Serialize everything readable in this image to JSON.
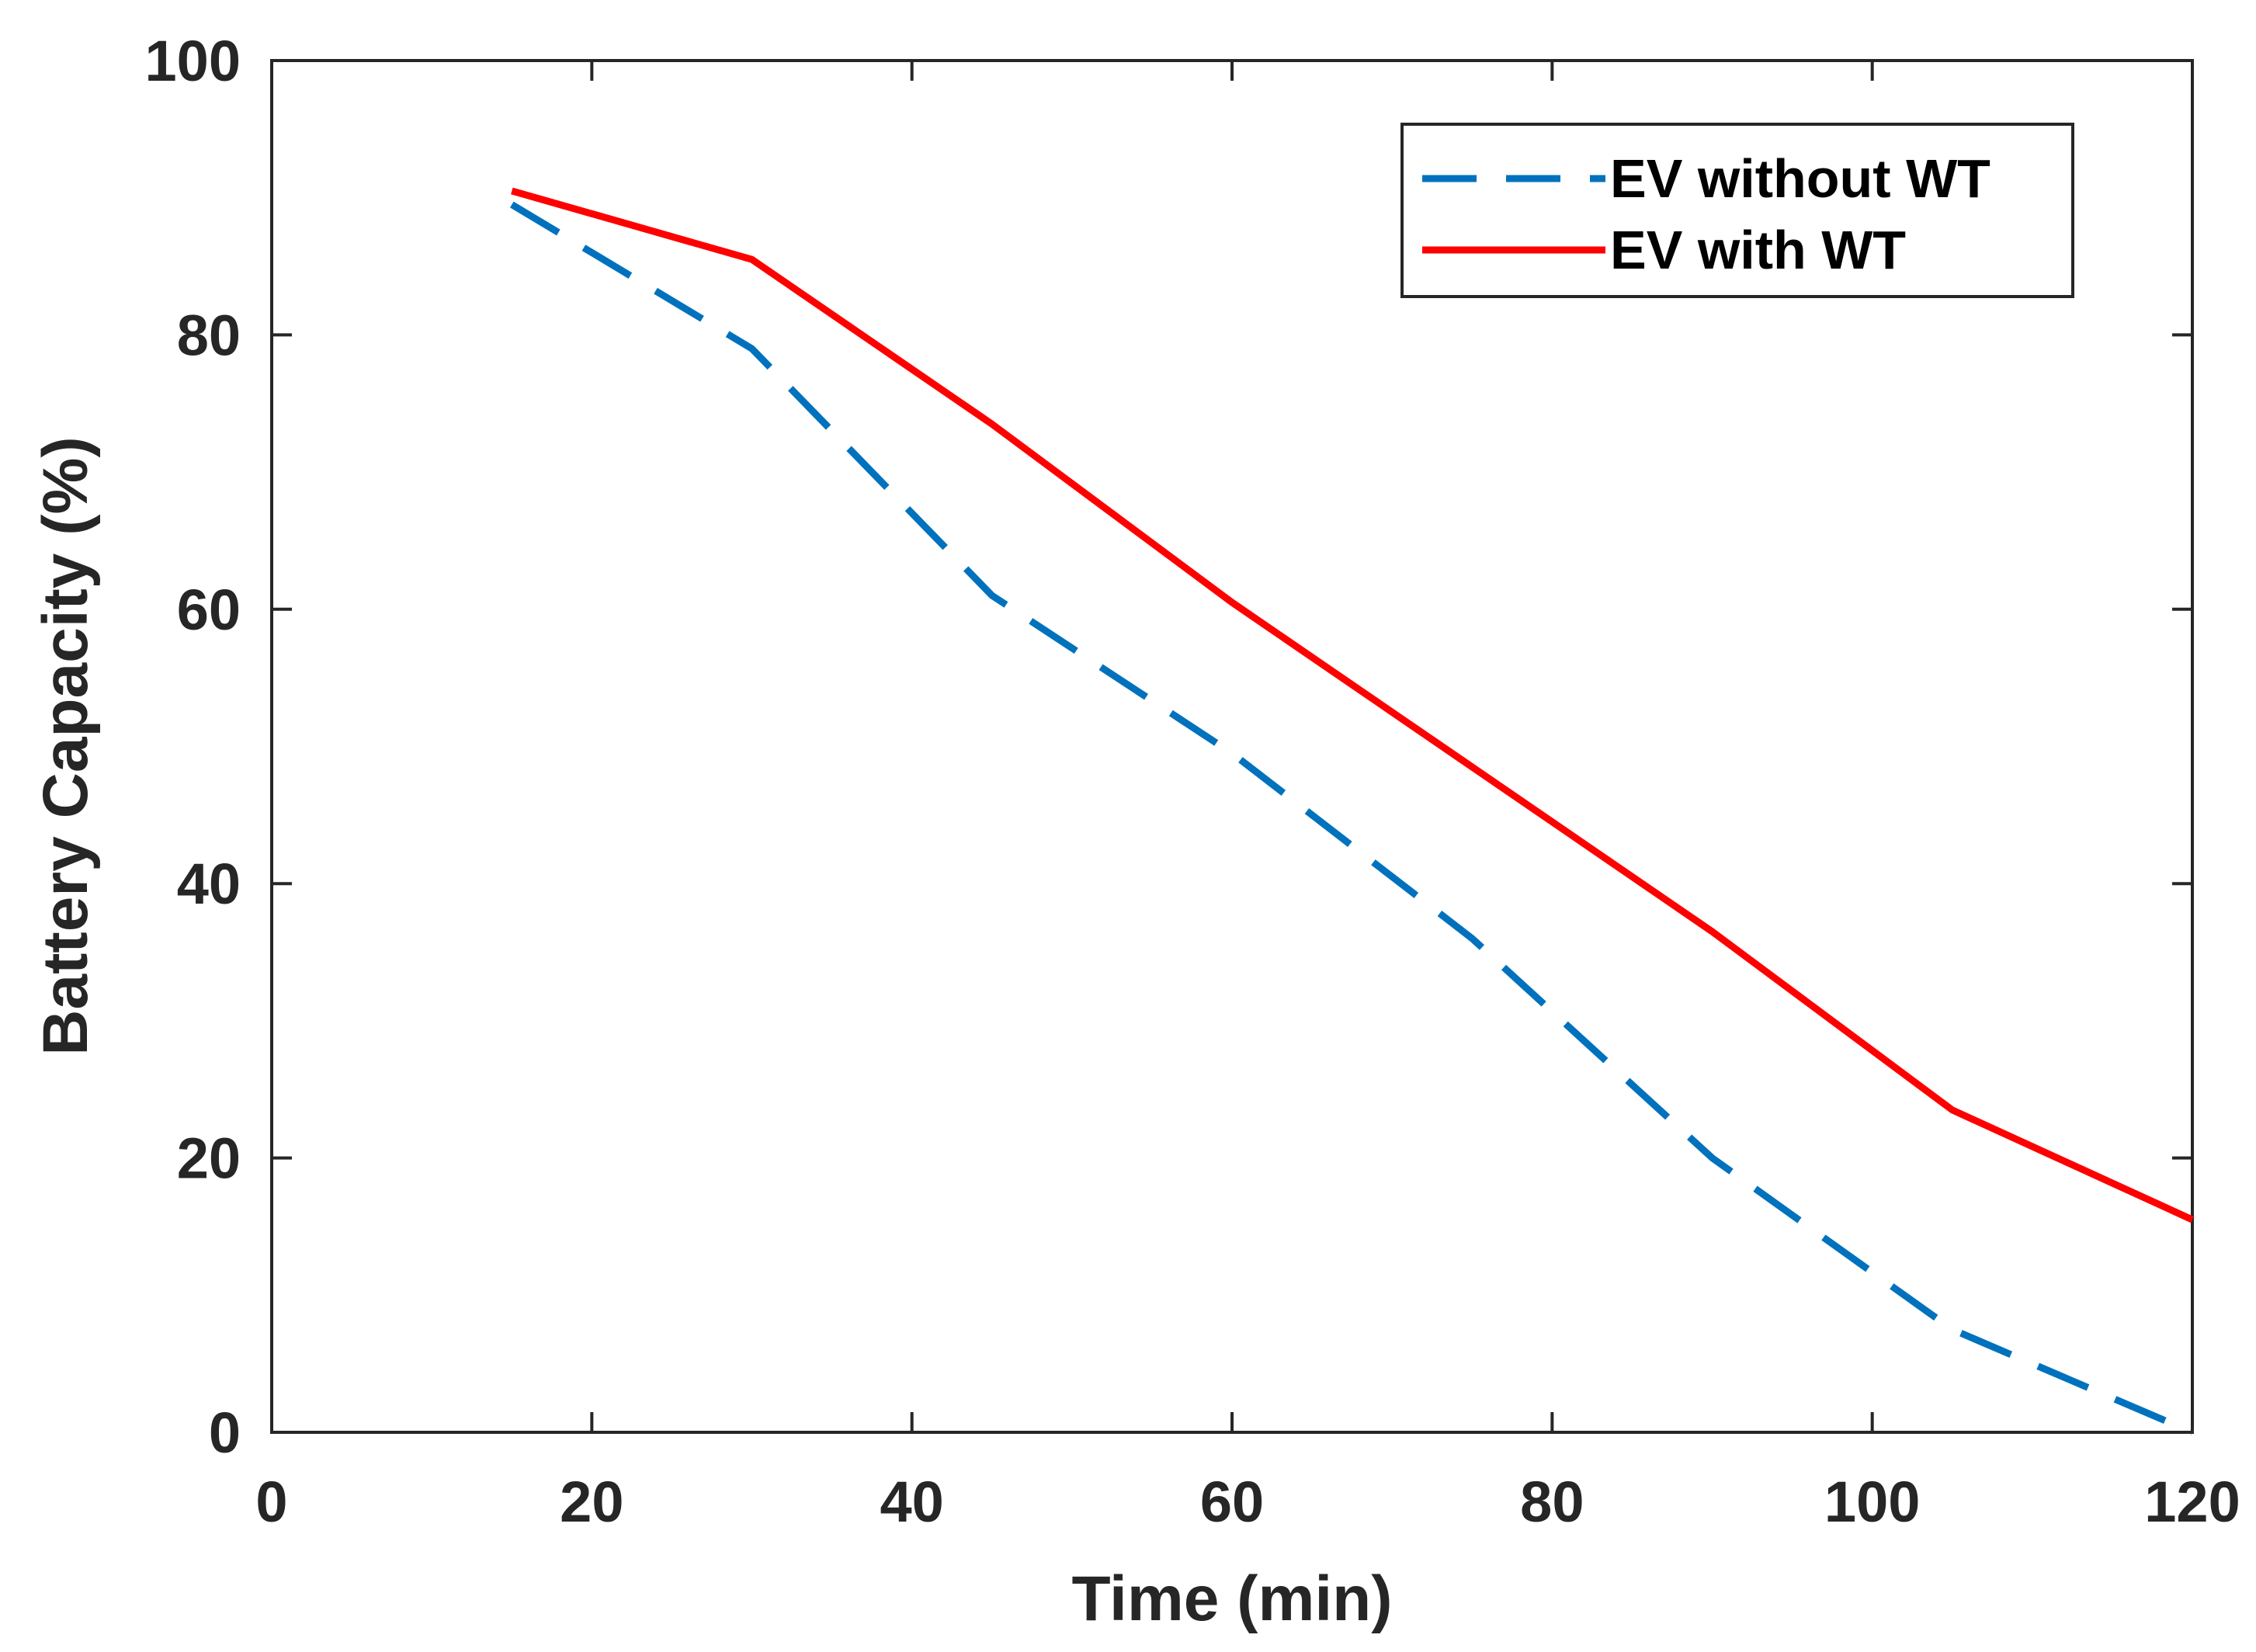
{
  "chart_data": {
    "type": "line",
    "title": "",
    "xlabel": "Time (min)",
    "ylabel": "Battery Capacity (%)",
    "xlim": [
      0,
      120
    ],
    "ylim": [
      0,
      100
    ],
    "xticks": [
      0,
      20,
      40,
      60,
      80,
      100,
      120
    ],
    "yticks": [
      0,
      20,
      40,
      60,
      80,
      100
    ],
    "grid": false,
    "legend_position": "top-right",
    "series": [
      {
        "name": "EV without WT",
        "style": "dashed",
        "color": "#0072BD",
        "x": [
          15,
          30,
          45,
          60,
          75,
          90,
          105,
          120
        ],
        "values": [
          89.5,
          79,
          61,
          49.5,
          36,
          20,
          7.5,
          0
        ]
      },
      {
        "name": "EV with WT",
        "style": "solid",
        "color": "#FF0000",
        "x": [
          15,
          30,
          45,
          60,
          75,
          90,
          105,
          120
        ],
        "values": [
          90.5,
          85.5,
          73.5,
          60.5,
          48.5,
          36.5,
          23.5,
          15.5
        ]
      }
    ]
  }
}
